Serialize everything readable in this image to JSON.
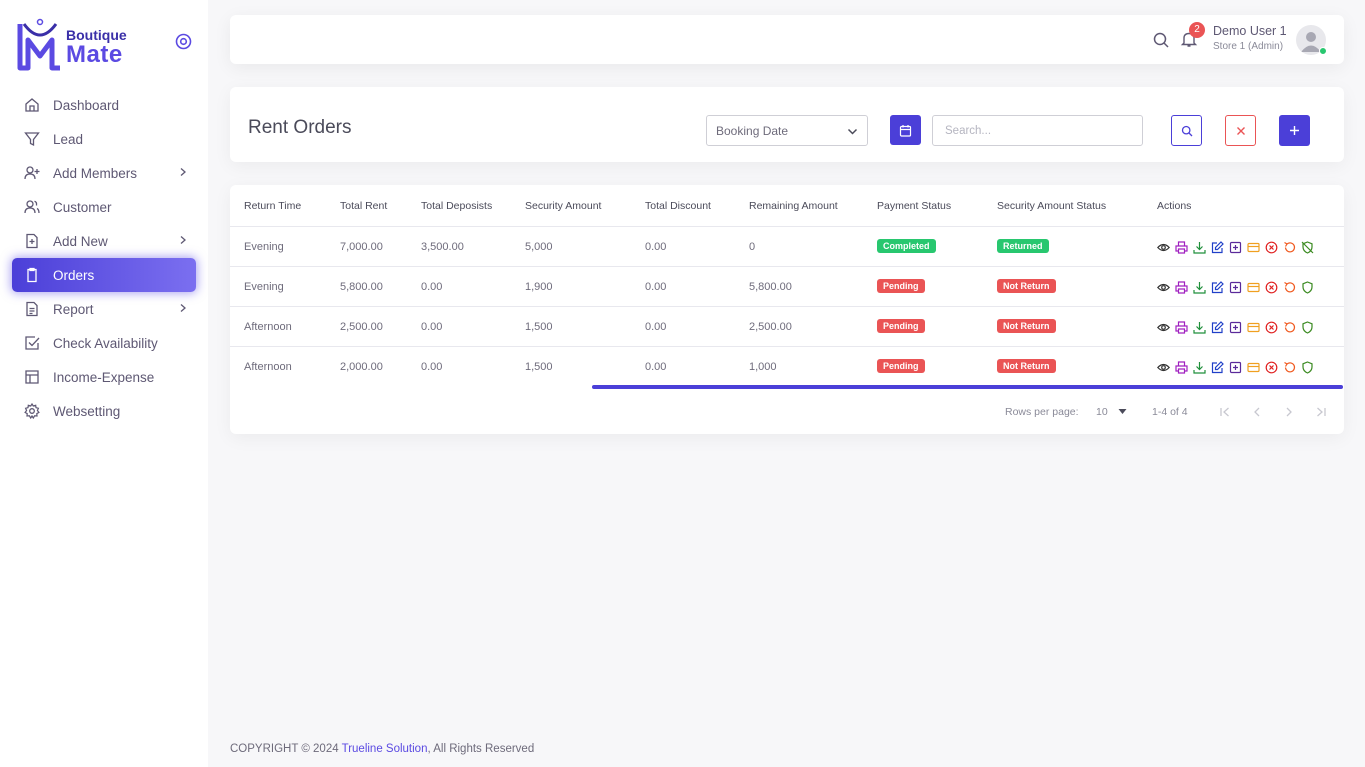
{
  "brand": {
    "line1": "Boutique",
    "line2": "Mate"
  },
  "sidebar": {
    "items": [
      {
        "label": "Dashboard",
        "icon": "home-icon"
      },
      {
        "label": "Lead",
        "icon": "filter-icon"
      },
      {
        "label": "Add Members",
        "icon": "user-plus-icon"
      },
      {
        "label": "Customer",
        "icon": "users-icon"
      },
      {
        "label": "Add New",
        "icon": "file-plus-icon"
      },
      {
        "label": "Orders",
        "icon": "clipboard-icon"
      },
      {
        "label": "Report",
        "icon": "file-text-icon"
      },
      {
        "label": "Check Availability",
        "icon": "check-square-icon"
      },
      {
        "label": "Income-Expense",
        "icon": "layout-icon"
      },
      {
        "label": "Websetting",
        "icon": "settings-icon"
      }
    ]
  },
  "topbar": {
    "notification_count": "2",
    "user_name": "Demo User 1",
    "user_role": "Store 1 (Admin)"
  },
  "page": {
    "title": "Rent Orders",
    "date_filter": "Booking Date",
    "search_placeholder": "Search..."
  },
  "table": {
    "headers": [
      "Return Time",
      "Total Rent",
      "Total Deposists",
      "Security Amount",
      "Total Discount",
      "Remaining Amount",
      "Payment Status",
      "Security Amount Status",
      "Actions"
    ],
    "rows": [
      {
        "return_time": "Evening",
        "total_rent": "7,000.00",
        "total_deposits": "3,500.00",
        "security_amount": "5,000",
        "total_discount": "0.00",
        "remaining_amount": "0",
        "payment_status": "Completed",
        "security_status": "Returned"
      },
      {
        "return_time": "Evening",
        "total_rent": "5,800.00",
        "total_deposits": "0.00",
        "security_amount": "1,900",
        "total_discount": "0.00",
        "remaining_amount": "5,800.00",
        "payment_status": "Pending",
        "security_status": "Not Return"
      },
      {
        "return_time": "Afternoon",
        "total_rent": "2,500.00",
        "total_deposits": "0.00",
        "security_amount": "1,500",
        "total_discount": "0.00",
        "remaining_amount": "2,500.00",
        "payment_status": "Pending",
        "security_status": "Not Return"
      },
      {
        "return_time": "Afternoon",
        "total_rent": "2,000.00",
        "total_deposits": "0.00",
        "security_amount": "1,500",
        "total_discount": "0.00",
        "remaining_amount": "1,000",
        "payment_status": "Pending",
        "security_status": "Not Return"
      }
    ]
  },
  "pagination": {
    "rows_per_page_label": "Rows per page:",
    "rows_per_page": "10",
    "range": "1-4 of 4"
  },
  "footer": {
    "prefix": "COPYRIGHT © 2024 ",
    "company": "Trueline Solution",
    "suffix": ", All Rights Reserved"
  },
  "colors": {
    "primary": "#4b3fd8",
    "success": "#28c76f",
    "danger": "#ea5455"
  }
}
